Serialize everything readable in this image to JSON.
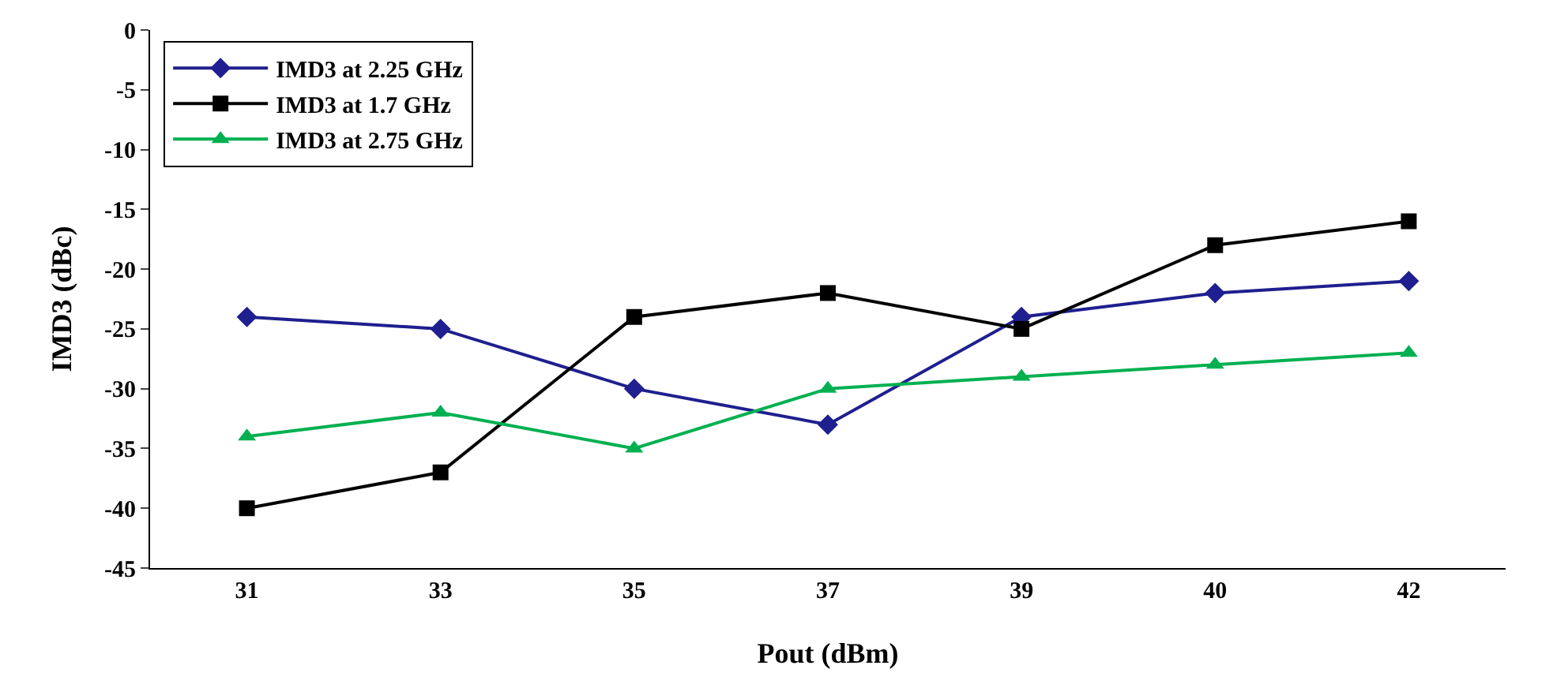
{
  "chart_data": {
    "type": "line",
    "xlabel": "Pout (dBm)",
    "ylabel": "IMD3 (dBc)",
    "categories": [
      "31",
      "33",
      "35",
      "37",
      "39",
      "40",
      "42"
    ],
    "series": [
      {
        "name": "IMD3 at 2.25 GHz",
        "color": "#1f1f8f",
        "marker": "diamond",
        "values": [
          -24,
          -25,
          -30,
          -33,
          -24,
          -22,
          -21
        ]
      },
      {
        "name": "IMD3 at 1.7 GHz",
        "color": "#000000",
        "marker": "square",
        "values": [
          -40,
          -37,
          -24,
          -22,
          -25,
          -18,
          -16
        ]
      },
      {
        "name": "IMD3 at 2.75 GHz",
        "color": "#00b050",
        "marker": "triangle",
        "values": [
          -34,
          -32,
          -35,
          -30,
          -29,
          -28,
          -27
        ]
      }
    ],
    "ylim": [
      -45,
      0
    ],
    "yticks": [
      -45,
      -40,
      -35,
      -30,
      -25,
      -20,
      -15,
      -10,
      -5,
      0
    ],
    "legend": "top left",
    "line_style": "solid"
  }
}
